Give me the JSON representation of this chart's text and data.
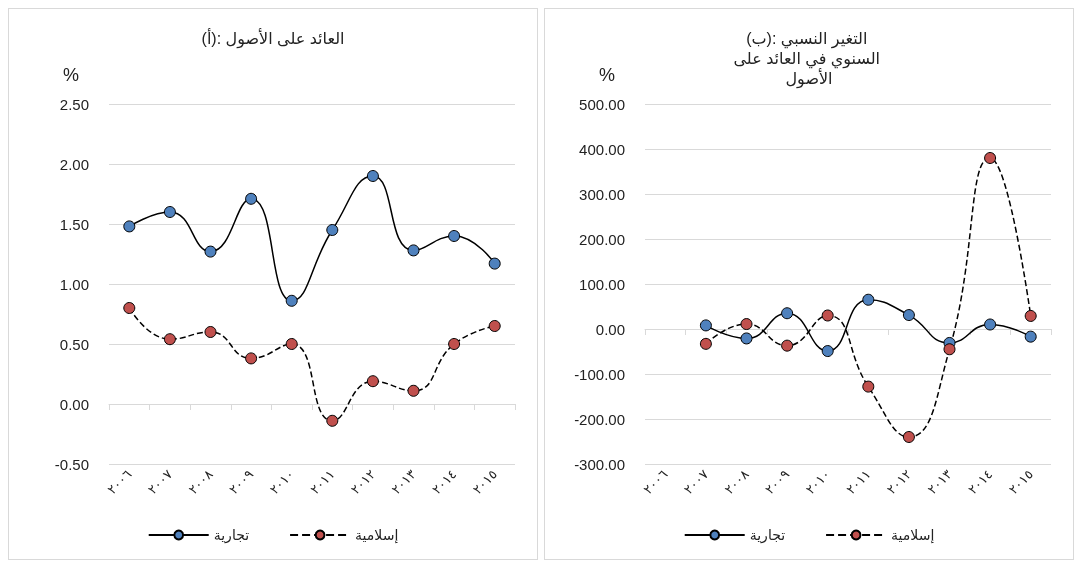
{
  "chart_data": [
    {
      "type": "line",
      "title": "(أ): العائد على الأصول",
      "ylabel": "%",
      "categories": [
        "٢٠٠٦",
        "٢٠٠٧",
        "٢٠٠٨",
        "٢٠٠٩",
        "٢٠١٠",
        "٢٠١١",
        "٢٠١٢",
        "٢٠١٣",
        "٢٠١٤",
        "٢٠١٥"
      ],
      "series": [
        {
          "name": "تجارية",
          "color": "#4f81bd",
          "line_style": "solid",
          "values": [
            1.48,
            1.6,
            1.27,
            1.71,
            0.86,
            1.45,
            1.9,
            1.28,
            1.4,
            1.17
          ]
        },
        {
          "name": "إسلامية",
          "color": "#c0504d",
          "line_style": "dashed",
          "values": [
            0.8,
            0.54,
            0.6,
            0.38,
            0.5,
            -0.14,
            0.19,
            0.11,
            0.5,
            0.65
          ]
        }
      ],
      "ylim": [
        -0.5,
        2.5
      ],
      "yticks": [
        {
          "value": -0.5,
          "label": "-0.50"
        },
        {
          "value": 0,
          "label": "0.00"
        },
        {
          "value": 0.5,
          "label": "0.50"
        },
        {
          "value": 1,
          "label": "1.00"
        },
        {
          "value": 1.5,
          "label": "1.50"
        },
        {
          "value": 2,
          "label": "2.00"
        },
        {
          "value": 2.5,
          "label": "2.50"
        }
      ],
      "grid": "y",
      "legend": "bottom",
      "marker": "circle"
    },
    {
      "type": "line",
      "title": "(ب): التغير النسبي السنوي في العائد على الأصول",
      "ylabel": "%",
      "categories": [
        "٢٠٠٦",
        "٢٠٠٧",
        "٢٠٠٨",
        "٢٠٠٩",
        "٢٠١٠",
        "٢٠١١",
        "٢٠١٢",
        "٢٠١٣",
        "٢٠١٤",
        "٢٠١٥"
      ],
      "series": [
        {
          "name": "تجارية",
          "color": "#4f81bd",
          "line_style": "solid",
          "values": [
            null,
            8,
            -21,
            35,
            -49,
            65,
            31,
            -31,
            10,
            -17
          ]
        },
        {
          "name": "إسلامية",
          "color": "#c0504d",
          "line_style": "dashed",
          "values": [
            null,
            -33,
            11,
            -37,
            30,
            -128,
            -240,
            -45,
            380,
            29
          ]
        }
      ],
      "ylim": [
        -300,
        500
      ],
      "yticks": [
        {
          "value": -300,
          "label": "-300.00"
        },
        {
          "value": -200,
          "label": "-200.00"
        },
        {
          "value": -100,
          "label": "-100.00"
        },
        {
          "value": 0,
          "label": "0.00"
        },
        {
          "value": 100,
          "label": "100.00"
        },
        {
          "value": 200,
          "label": "200.00"
        },
        {
          "value": 300,
          "label": "300.00"
        },
        {
          "value": 400,
          "label": "400.00"
        },
        {
          "value": 500,
          "label": "500.00"
        }
      ],
      "grid": "y",
      "legend": "bottom",
      "marker": "circle"
    }
  ]
}
